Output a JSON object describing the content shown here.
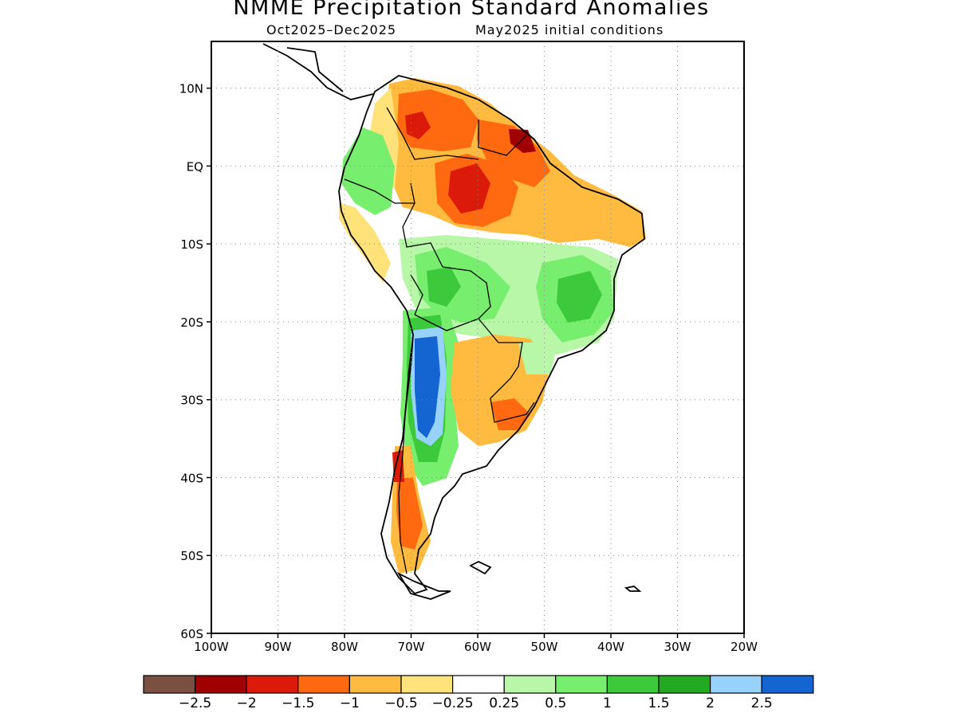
{
  "map": {
    "title": "NMME Precipitation Standard Anomalies",
    "period": "Oct2025–Dec2025",
    "initial_conditions": "May2025 initial conditions",
    "lat_ticks": [
      "10N",
      "EQ",
      "10S",
      "20S",
      "30S",
      "40S",
      "50S",
      "60S"
    ],
    "lon_ticks": [
      "100W",
      "90W",
      "80W",
      "70W",
      "60W",
      "50W",
      "40W",
      "30W",
      "20W"
    ],
    "lat_range": [
      -60,
      16
    ],
    "lon_range": [
      -100,
      -20
    ],
    "gridlines": "dotted"
  },
  "colorbar": {
    "colors": [
      "#7b5040",
      "#a00000",
      "#dc1a0a",
      "#ff6a10",
      "#ffbb40",
      "#ffe27a",
      "#ffffff",
      "#b8f7a8",
      "#78ee6e",
      "#3cc93c",
      "#22aa22",
      "#96d2fa",
      "#1464d2"
    ],
    "labels": [
      "−2.5",
      "−2",
      "−1.5",
      "−1",
      "−0.5",
      "−0.25",
      "0.25",
      "0.5",
      "1",
      "1.5",
      "2",
      "2.5"
    ]
  },
  "anomaly_regions": [
    {
      "name": "northern-south-america-dry",
      "level": -1
    },
    {
      "name": "central-amazon-dry-core",
      "level": -1.5
    },
    {
      "name": "guianas-dry-core",
      "level": -2
    },
    {
      "name": "central-brazil-wet",
      "level": 0.5
    },
    {
      "name": "eastern-brazil-wet",
      "level": 1
    },
    {
      "name": "bolivia-wet",
      "level": 1
    },
    {
      "name": "northern-argentina-very-wet",
      "level": 2.5
    },
    {
      "name": "uruguay-dry",
      "level": -1
    },
    {
      "name": "southern-chile-dry",
      "level": -1
    },
    {
      "name": "colombia-wet",
      "level": 0.5
    }
  ]
}
